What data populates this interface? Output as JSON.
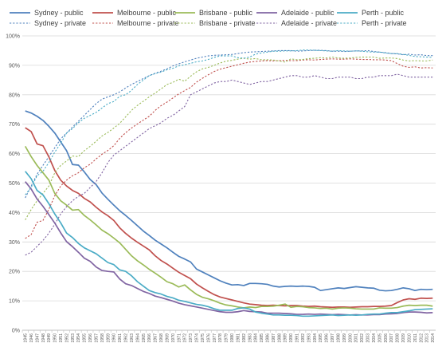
{
  "chart_data": {
    "type": "line",
    "x": [
      1945,
      1946,
      1947,
      1948,
      1949,
      1950,
      1951,
      1952,
      1953,
      1954,
      1955,
      1956,
      1957,
      1958,
      1959,
      1960,
      1961,
      1962,
      1963,
      1964,
      1965,
      1966,
      1967,
      1968,
      1969,
      1970,
      1971,
      1972,
      1973,
      1974,
      1975,
      1976,
      1977,
      1978,
      1979,
      1980,
      1981,
      1982,
      1983,
      1984,
      1985,
      1986,
      1987,
      1988,
      1989,
      1990,
      1991,
      1992,
      1993,
      1994,
      1995,
      1996,
      1997,
      1998,
      1999,
      2000,
      2001,
      2002,
      2003,
      2004,
      2005,
      2006,
      2007,
      2008,
      2009,
      2010,
      2011,
      2012,
      2013,
      2014
    ],
    "ylim": [
      0,
      100
    ],
    "yticks": [
      0,
      10,
      20,
      30,
      40,
      50,
      60,
      70,
      80,
      90,
      100
    ],
    "ytick_labels": [
      "0%",
      "10%",
      "20%",
      "30%",
      "40%",
      "50%",
      "60%",
      "70%",
      "80%",
      "90%",
      "100%"
    ],
    "grid": true,
    "legend_placement": "top",
    "series": [
      {
        "name": "Sydney - public",
        "color": "#4f81bd",
        "dash": false,
        "values": [
          74.5,
          73.8,
          72.7,
          71.3,
          69.3,
          67,
          64,
          61,
          56.3,
          56.1,
          53.8,
          51.2,
          49.5,
          46.6,
          44.5,
          42.5,
          40.6,
          39,
          37.3,
          35.5,
          33.7,
          32.2,
          30.6,
          29.3,
          28,
          26.5,
          25.1,
          24.2,
          23.2,
          20.8,
          19.8,
          18.8,
          17.8,
          16.8,
          16,
          15.4,
          15.5,
          15.2,
          15.9,
          15.9,
          15.8,
          15.6,
          15,
          14.7,
          14.9,
          15,
          14.9,
          15,
          14.9,
          14.6,
          13.5,
          13.8,
          14.1,
          14.4,
          14.2,
          14.5,
          14.8,
          14.6,
          14.4,
          14.3,
          13.6,
          13.4,
          13.5,
          13.9,
          14.4,
          14.1,
          13.5,
          13.9,
          13.8,
          13.9
        ]
      },
      {
        "name": "Sydney - private",
        "color": "#4f81bd",
        "dash": true,
        "values": [
          45,
          49,
          53,
          56,
          59,
          62,
          65,
          67,
          69,
          71,
          73,
          75,
          77,
          78.5,
          79.3,
          80,
          81,
          82.3,
          83.5,
          84.5,
          85.5,
          86.5,
          87.3,
          88,
          88.8,
          89.8,
          90.5,
          91.2,
          91.8,
          92.4,
          92.8,
          93.2,
          93.4,
          93.5,
          93.6,
          93.7,
          94,
          94.3,
          94.5,
          94.6,
          94.7,
          94.8,
          94.9,
          95,
          95,
          95,
          94.8,
          94.9,
          95,
          95.1,
          95.1,
          95,
          94.8,
          94.8,
          94.7,
          94.8,
          94.9,
          94.9,
          95,
          94.7,
          94.5,
          94.3,
          94,
          93.9,
          93.6,
          93.8,
          93.5,
          93.6,
          93.3,
          93.3
        ]
      },
      {
        "name": "Melbourne - public",
        "color": "#c0504d",
        "dash": false,
        "values": [
          68.8,
          67.5,
          63.3,
          62.7,
          58.9,
          54.3,
          51,
          49,
          47.5,
          46.5,
          44.8,
          43.6,
          41.8,
          40.2,
          38.9,
          37.3,
          34.8,
          32.9,
          31.3,
          29.9,
          28.6,
          27.3,
          25.3,
          23.7,
          22.5,
          21.1,
          19.7,
          18.6,
          17.5,
          15.7,
          14.4,
          13.2,
          12.1,
          11.3,
          10.8,
          10.3,
          9.8,
          9.3,
          8.9,
          8.7,
          8.5,
          8.4,
          8.5,
          8.4,
          8.3,
          8.4,
          8.4,
          8.2,
          8.1,
          8.2,
          8,
          7.9,
          7.8,
          7.9,
          7.9,
          7.8,
          7.9,
          8,
          8,
          8.1,
          8.1,
          8.2,
          8.4,
          9.4,
          10.3,
          10.7,
          10.5,
          10.9,
          10.8,
          10.9
        ]
      },
      {
        "name": "Melbourne - private",
        "color": "#c0504d",
        "dash": true,
        "values": [
          31.2,
          32.5,
          36.7,
          37.3,
          41.1,
          45.7,
          49,
          51,
          52.5,
          53.5,
          55.2,
          56.4,
          58.2,
          59.8,
          61.1,
          62.7,
          65.2,
          67.1,
          68.7,
          70.1,
          71.4,
          72.7,
          74.7,
          76.3,
          77.5,
          78.9,
          80.3,
          81.4,
          82.5,
          84.3,
          85.6,
          86.8,
          87.9,
          88.7,
          89.2,
          89.7,
          90.2,
          90.7,
          91.1,
          91.3,
          91.5,
          91.6,
          91.5,
          91.6,
          91.7,
          91.6,
          91.6,
          91.8,
          91.9,
          91.8,
          92,
          92.1,
          92.2,
          92.1,
          92.1,
          92.2,
          92.1,
          92,
          92,
          91.9,
          91.9,
          91.8,
          91.6,
          90.6,
          89.7,
          89.3,
          89.5,
          89.1,
          89.2,
          89.1
        ]
      },
      {
        "name": "Brisbane - public",
        "color": "#9bbb59",
        "dash": false,
        "values": [
          62.5,
          59,
          56,
          53.5,
          51,
          46.5,
          44,
          42.5,
          40.8,
          41,
          39,
          37.5,
          35.8,
          34,
          32.8,
          31.3,
          29.7,
          27.5,
          25.3,
          23.6,
          22.2,
          20.7,
          19.4,
          18,
          16.5,
          15.8,
          14.7,
          15.4,
          13.7,
          12.2,
          11.2,
          10.7,
          10,
          9.2,
          8.6,
          8.3,
          7.9,
          7.6,
          7.9,
          7.7,
          8.1,
          8.1,
          8.2,
          8.5,
          8.9,
          7.8,
          8.1,
          8,
          7.7,
          7.6,
          7.4,
          7.5,
          7.2,
          7.5,
          7.6,
          7.5,
          7.3,
          7.2,
          7.2,
          7.2,
          7.6,
          7.5,
          7.5,
          7.7,
          8.2,
          8.5,
          8.4,
          8.5,
          8.5,
          8.2
        ]
      },
      {
        "name": "Brisbane - private",
        "color": "#9bbb59",
        "dash": true,
        "values": [
          37.5,
          41,
          44,
          46.5,
          49,
          53.5,
          56,
          57.5,
          59.2,
          59,
          61,
          62.5,
          64.2,
          66,
          67.2,
          68.7,
          70.3,
          72.5,
          74.7,
          76.4,
          77.8,
          79.3,
          80.6,
          82,
          83.5,
          84.2,
          85.3,
          84.6,
          86.3,
          87.8,
          88.8,
          89.3,
          90,
          90.8,
          91.4,
          91.7,
          92.1,
          92.4,
          92.1,
          92.3,
          91.9,
          91.9,
          91.8,
          91.5,
          91.1,
          92.2,
          91.9,
          92,
          92.3,
          92.4,
          92.6,
          92.5,
          92.8,
          92.5,
          92.4,
          92.5,
          92.7,
          92.8,
          92.8,
          92.8,
          92.4,
          92.5,
          92.5,
          92.3,
          91.8,
          91.5,
          91.6,
          91.5,
          91.5,
          91.8
        ]
      },
      {
        "name": "Adelaide - public",
        "color": "#8064a2",
        "dash": false,
        "values": [
          50.5,
          48,
          44.6,
          42.1,
          39.3,
          36.4,
          33.1,
          30.1,
          28.4,
          26.5,
          24.5,
          23.4,
          21.5,
          20.3,
          20,
          19.8,
          17.4,
          15.8,
          15.2,
          14.2,
          13.2,
          12.5,
          11.6,
          11.1,
          10.5,
          9.9,
          9.2,
          8.7,
          8.3,
          7.9,
          7.5,
          7.1,
          6.7,
          6.3,
          6.1,
          6.1,
          6.3,
          6.7,
          6.4,
          6.3,
          6.2,
          5.8,
          5.8,
          5.8,
          5.7,
          5.6,
          5.4,
          5.4,
          5.5,
          5.4,
          5.5,
          5.4,
          5.3,
          5.4,
          5.3,
          5.2,
          5.3,
          5.2,
          5.2,
          5.3,
          5.3,
          5.5,
          5.6,
          5.7,
          6,
          6.2,
          6.2,
          6.1,
          5.9,
          6
        ]
      },
      {
        "name": "Adelaide - private",
        "color": "#8064a2",
        "dash": true,
        "values": [
          25.5,
          26.5,
          28.5,
          30.5,
          33,
          36,
          39.5,
          42,
          44,
          45.5,
          46.5,
          48.5,
          50.5,
          53.5,
          57,
          59.5,
          61,
          62.5,
          64,
          65.5,
          67,
          68.5,
          69.5,
          70.5,
          72,
          73,
          74.5,
          76,
          80,
          81,
          82,
          83,
          84,
          84.5,
          84.5,
          85,
          84.5,
          84,
          83.5,
          84,
          84.5,
          84.5,
          85,
          85.5,
          86,
          86.5,
          86.5,
          86,
          86,
          86.5,
          86,
          85.5,
          85.5,
          86,
          86,
          86,
          85.5,
          85.5,
          86,
          86,
          86.5,
          86.5,
          86.5,
          87,
          86.5,
          86,
          86,
          86,
          86,
          86
        ]
      },
      {
        "name": "Perth - public",
        "color": "#4bacc6",
        "dash": false,
        "values": [
          54,
          51.5,
          47.5,
          46,
          43,
          39.5,
          36.5,
          33,
          31.5,
          29.5,
          28,
          27,
          26,
          24.5,
          23,
          22.3,
          20.5,
          20,
          18.5,
          16.5,
          15,
          13.5,
          12.8,
          12.3,
          11.5,
          11,
          10.2,
          9.8,
          9.3,
          8.8,
          8.5,
          8,
          7.3,
          6.8,
          6.8,
          6.8,
          7.4,
          7.6,
          7.2,
          6.2,
          5.8,
          5.5,
          5.2,
          5.2,
          5.1,
          5.1,
          5,
          4.8,
          4.8,
          4.9,
          5,
          5.1,
          5.2,
          5,
          5.1,
          5.2,
          5.1,
          5.2,
          5.4,
          5.5,
          5.5,
          5.8,
          6,
          6,
          6.3,
          6.6,
          7,
          7.1,
          7.2,
          7.3
        ]
      },
      {
        "name": "Perth - private",
        "color": "#4bacc6",
        "dash": true,
        "values": [
          46,
          48.5,
          52.5,
          54,
          57,
          60.5,
          63.5,
          67,
          68.5,
          70.5,
          72,
          73,
          74,
          75.5,
          77,
          77.7,
          79.5,
          80,
          81.5,
          83.5,
          85,
          86.5,
          87.2,
          87.7,
          88.5,
          89,
          89.8,
          90.2,
          90.7,
          91.2,
          91.5,
          92,
          92.7,
          93.2,
          93.2,
          93.2,
          92.6,
          92.4,
          92.8,
          93.8,
          94.2,
          94.5,
          94.8,
          94.8,
          94.9,
          94.9,
          95,
          95.2,
          95.2,
          95.1,
          95,
          94.9,
          94.8,
          95,
          94.9,
          94.8,
          94.9,
          94.8,
          94.6,
          94.5,
          94.5,
          94.2,
          94,
          94,
          93.7,
          93.4,
          93,
          92.9,
          92.8,
          92.7
        ]
      }
    ]
  }
}
